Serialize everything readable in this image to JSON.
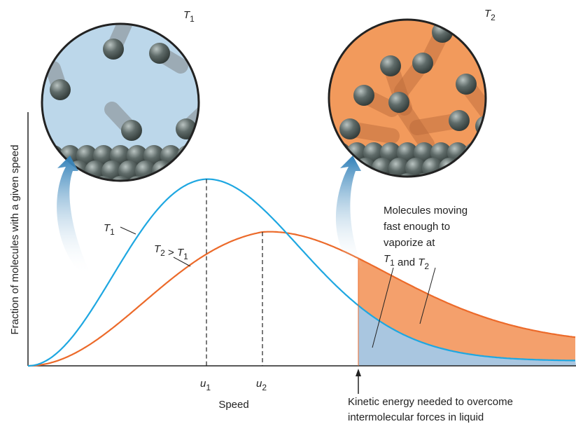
{
  "circle_labels": [
    {
      "symbol": "T",
      "sub": "1"
    },
    {
      "symbol": "T",
      "sub": "2"
    }
  ],
  "y_axis_label": "Fraction of molecules with a given speed",
  "x_axis_label": "Speed",
  "speed_marks": [
    {
      "symbol": "u",
      "sub": "1"
    },
    {
      "symbol": "u",
      "sub": "2"
    }
  ],
  "curve_labels": {
    "t1": [
      {
        "symbol": "T",
        "sub": "1"
      }
    ],
    "t2": [
      {
        "symbol": "T",
        "sub": "2"
      },
      " > ",
      {
        "symbol": "T",
        "sub": "1"
      }
    ]
  },
  "annotation": {
    "lines": [
      "Molecules moving",
      "fast enough to",
      "vaporize at"
    ],
    "last_line": [
      {
        "symbol": "T",
        "sub": "1"
      },
      " and ",
      {
        "symbol": "T",
        "sub": "2"
      }
    ]
  },
  "threshold_label": [
    "Kinetic energy needed to overcome",
    "intermolecular forces in liquid"
  ]
}
